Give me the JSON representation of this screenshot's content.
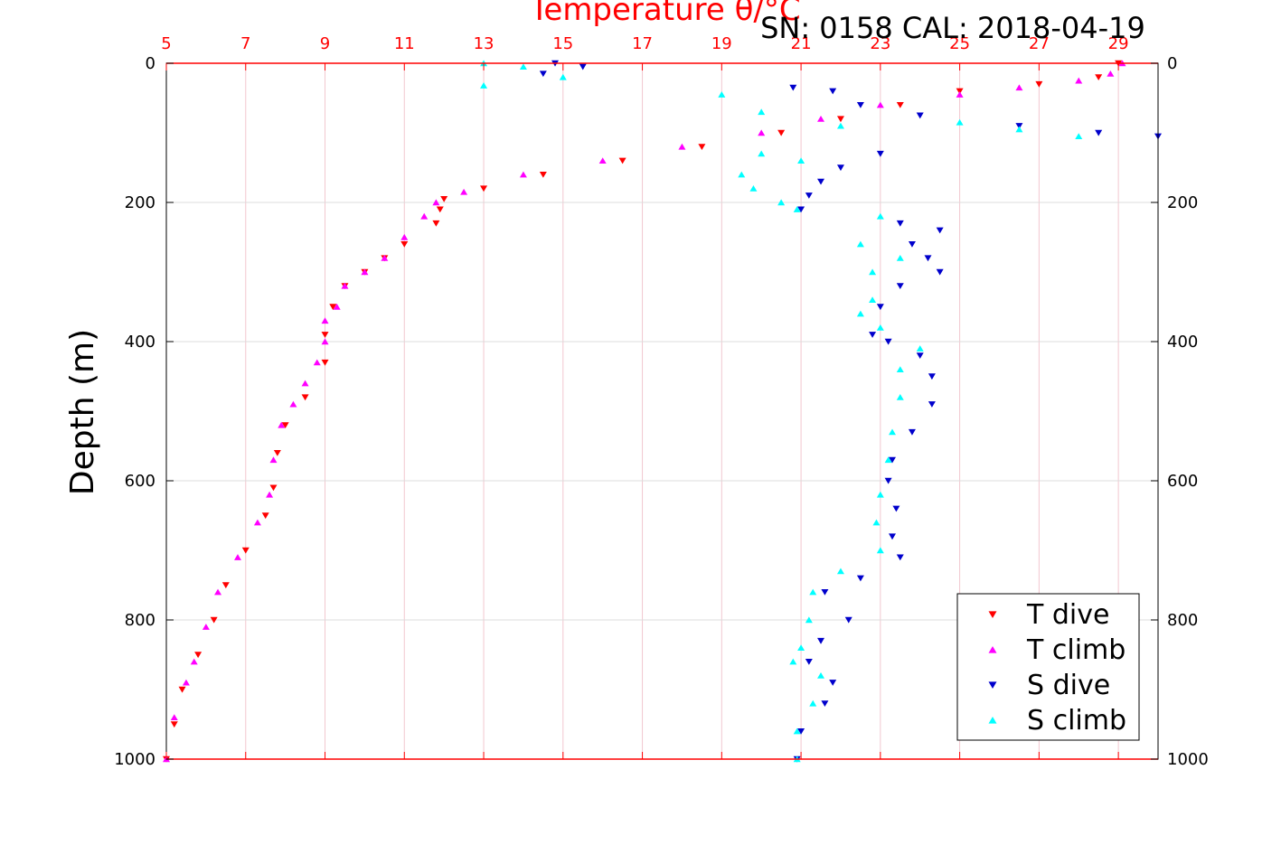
{
  "chart_data": {
    "type": "scatter",
    "title": "Temperature θ/°C",
    "subtitle": "SN: 0158  CAL: 2018-04-19",
    "ylabel": "Depth (m)",
    "xlim": [
      5,
      30
    ],
    "ylim": [
      0,
      1000
    ],
    "y_inverted": true,
    "x_ticks": [
      5,
      7,
      9,
      11,
      13,
      15,
      17,
      19,
      21,
      23,
      25,
      27,
      29
    ],
    "y_ticks": [
      0,
      200,
      400,
      600,
      800,
      1000
    ],
    "grid": true,
    "legend_position": "bottom-right",
    "series": [
      {
        "name": "T dive",
        "color": "#ff0000",
        "marker": "triangle-down",
        "points": [
          [
            29.0,
            0
          ],
          [
            28.5,
            20
          ],
          [
            27.0,
            30
          ],
          [
            25.0,
            40
          ],
          [
            23.5,
            60
          ],
          [
            22.0,
            80
          ],
          [
            20.5,
            100
          ],
          [
            18.5,
            120
          ],
          [
            16.5,
            140
          ],
          [
            14.5,
            160
          ],
          [
            13.0,
            180
          ],
          [
            12.0,
            195
          ],
          [
            11.9,
            210
          ],
          [
            11.8,
            230
          ],
          [
            11.0,
            260
          ],
          [
            10.5,
            280
          ],
          [
            10.0,
            300
          ],
          [
            9.5,
            320
          ],
          [
            9.2,
            350
          ],
          [
            9.0,
            390
          ],
          [
            9.0,
            430
          ],
          [
            8.5,
            480
          ],
          [
            8.0,
            520
          ],
          [
            7.8,
            560
          ],
          [
            7.7,
            610
          ],
          [
            7.5,
            650
          ],
          [
            7.0,
            700
          ],
          [
            6.5,
            750
          ],
          [
            6.2,
            800
          ],
          [
            5.8,
            850
          ],
          [
            5.4,
            900
          ],
          [
            5.2,
            950
          ],
          [
            5.0,
            1000
          ]
        ]
      },
      {
        "name": "T climb",
        "color": "#ff00ff",
        "marker": "triangle-up",
        "points": [
          [
            29.1,
            0
          ],
          [
            28.8,
            15
          ],
          [
            28.0,
            25
          ],
          [
            26.5,
            35
          ],
          [
            25.0,
            45
          ],
          [
            23.0,
            60
          ],
          [
            21.5,
            80
          ],
          [
            20.0,
            100
          ],
          [
            18.0,
            120
          ],
          [
            16.0,
            140
          ],
          [
            14.0,
            160
          ],
          [
            12.5,
            185
          ],
          [
            11.8,
            200
          ],
          [
            11.5,
            220
          ],
          [
            11.0,
            250
          ],
          [
            10.5,
            280
          ],
          [
            10.0,
            300
          ],
          [
            9.5,
            320
          ],
          [
            9.3,
            350
          ],
          [
            9.0,
            370
          ],
          [
            9.0,
            400
          ],
          [
            8.8,
            430
          ],
          [
            8.5,
            460
          ],
          [
            8.2,
            490
          ],
          [
            7.9,
            520
          ],
          [
            7.7,
            570
          ],
          [
            7.6,
            620
          ],
          [
            7.3,
            660
          ],
          [
            6.8,
            710
          ],
          [
            6.3,
            760
          ],
          [
            6.0,
            810
          ],
          [
            5.7,
            860
          ],
          [
            5.5,
            890
          ],
          [
            5.2,
            940
          ],
          [
            5.0,
            1000
          ]
        ]
      },
      {
        "name": "S dive",
        "color": "#0000cc",
        "marker": "triangle-down",
        "points": [
          [
            14.8,
            0
          ],
          [
            15.5,
            5
          ],
          [
            14.5,
            15
          ],
          [
            20.8,
            35
          ],
          [
            21.8,
            40
          ],
          [
            22.5,
            60
          ],
          [
            24.0,
            75
          ],
          [
            26.5,
            90
          ],
          [
            28.5,
            100
          ],
          [
            30.0,
            105
          ],
          [
            23.0,
            130
          ],
          [
            22.0,
            150
          ],
          [
            21.5,
            170
          ],
          [
            21.2,
            190
          ],
          [
            21.0,
            210
          ],
          [
            23.5,
            230
          ],
          [
            24.5,
            240
          ],
          [
            23.8,
            260
          ],
          [
            24.2,
            280
          ],
          [
            24.5,
            300
          ],
          [
            23.5,
            320
          ],
          [
            23.0,
            350
          ],
          [
            22.8,
            390
          ],
          [
            23.2,
            400
          ],
          [
            24.0,
            420
          ],
          [
            24.3,
            450
          ],
          [
            24.3,
            490
          ],
          [
            23.8,
            530
          ],
          [
            23.3,
            570
          ],
          [
            23.2,
            600
          ],
          [
            23.4,
            640
          ],
          [
            23.3,
            680
          ],
          [
            23.5,
            710
          ],
          [
            22.5,
            740
          ],
          [
            21.6,
            760
          ],
          [
            22.2,
            800
          ],
          [
            21.5,
            830
          ],
          [
            21.2,
            860
          ],
          [
            21.8,
            890
          ],
          [
            21.6,
            920
          ],
          [
            21.0,
            960
          ],
          [
            20.9,
            1000
          ]
        ]
      },
      {
        "name": "S climb",
        "color": "#00ffff",
        "marker": "triangle-up",
        "points": [
          [
            13.0,
            0
          ],
          [
            14.0,
            5
          ],
          [
            15.0,
            20
          ],
          [
            13.0,
            32
          ],
          [
            19.0,
            45
          ],
          [
            20.0,
            70
          ],
          [
            22.0,
            90
          ],
          [
            25.0,
            85
          ],
          [
            26.5,
            95
          ],
          [
            28.0,
            105
          ],
          [
            20.0,
            130
          ],
          [
            21.0,
            140
          ],
          [
            19.5,
            160
          ],
          [
            19.8,
            180
          ],
          [
            20.5,
            200
          ],
          [
            20.9,
            210
          ],
          [
            23.0,
            220
          ],
          [
            22.5,
            260
          ],
          [
            23.5,
            280
          ],
          [
            22.8,
            300
          ],
          [
            22.8,
            340
          ],
          [
            22.5,
            360
          ],
          [
            23.0,
            380
          ],
          [
            24.0,
            410
          ],
          [
            23.5,
            440
          ],
          [
            23.5,
            480
          ],
          [
            23.3,
            530
          ],
          [
            23.2,
            570
          ],
          [
            23.0,
            620
          ],
          [
            22.9,
            660
          ],
          [
            23.0,
            700
          ],
          [
            22.0,
            730
          ],
          [
            21.3,
            760
          ],
          [
            21.2,
            800
          ],
          [
            21.0,
            840
          ],
          [
            20.8,
            860
          ],
          [
            21.5,
            880
          ],
          [
            21.3,
            920
          ],
          [
            20.9,
            960
          ],
          [
            20.9,
            1000
          ]
        ]
      }
    ]
  }
}
